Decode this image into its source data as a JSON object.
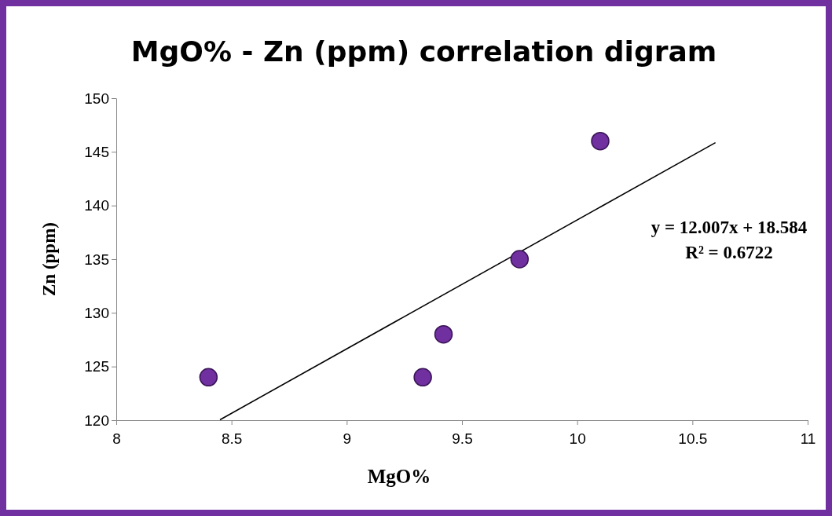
{
  "chart_data": {
    "type": "scatter",
    "title": "MgO% - Zn (ppm) correlation digram",
    "xlabel": "MgO%",
    "ylabel": "Zn (ppm)",
    "xlim": [
      8,
      11
    ],
    "xticks": [
      8,
      8.5,
      9,
      9.5,
      10,
      10.5,
      11
    ],
    "ylim": [
      120,
      150
    ],
    "yticks": [
      120,
      125,
      130,
      135,
      140,
      145,
      150
    ],
    "grid": false,
    "marker": "circle",
    "series": [
      {
        "color": "#7030a0",
        "x": [
          8.4,
          9.33,
          9.42,
          9.75,
          10.1
        ],
        "values": [
          124,
          124,
          128,
          135,
          146
        ]
      },
      {
        "type": "line",
        "marker": "none",
        "color": "#000000",
        "x": [
          8.45,
          10.6
        ],
        "values": [
          120.04,
          145.86
        ]
      }
    ],
    "annotations": [
      "y = 12.007x + 18.584",
      "R² = 0.6722"
    ]
  }
}
